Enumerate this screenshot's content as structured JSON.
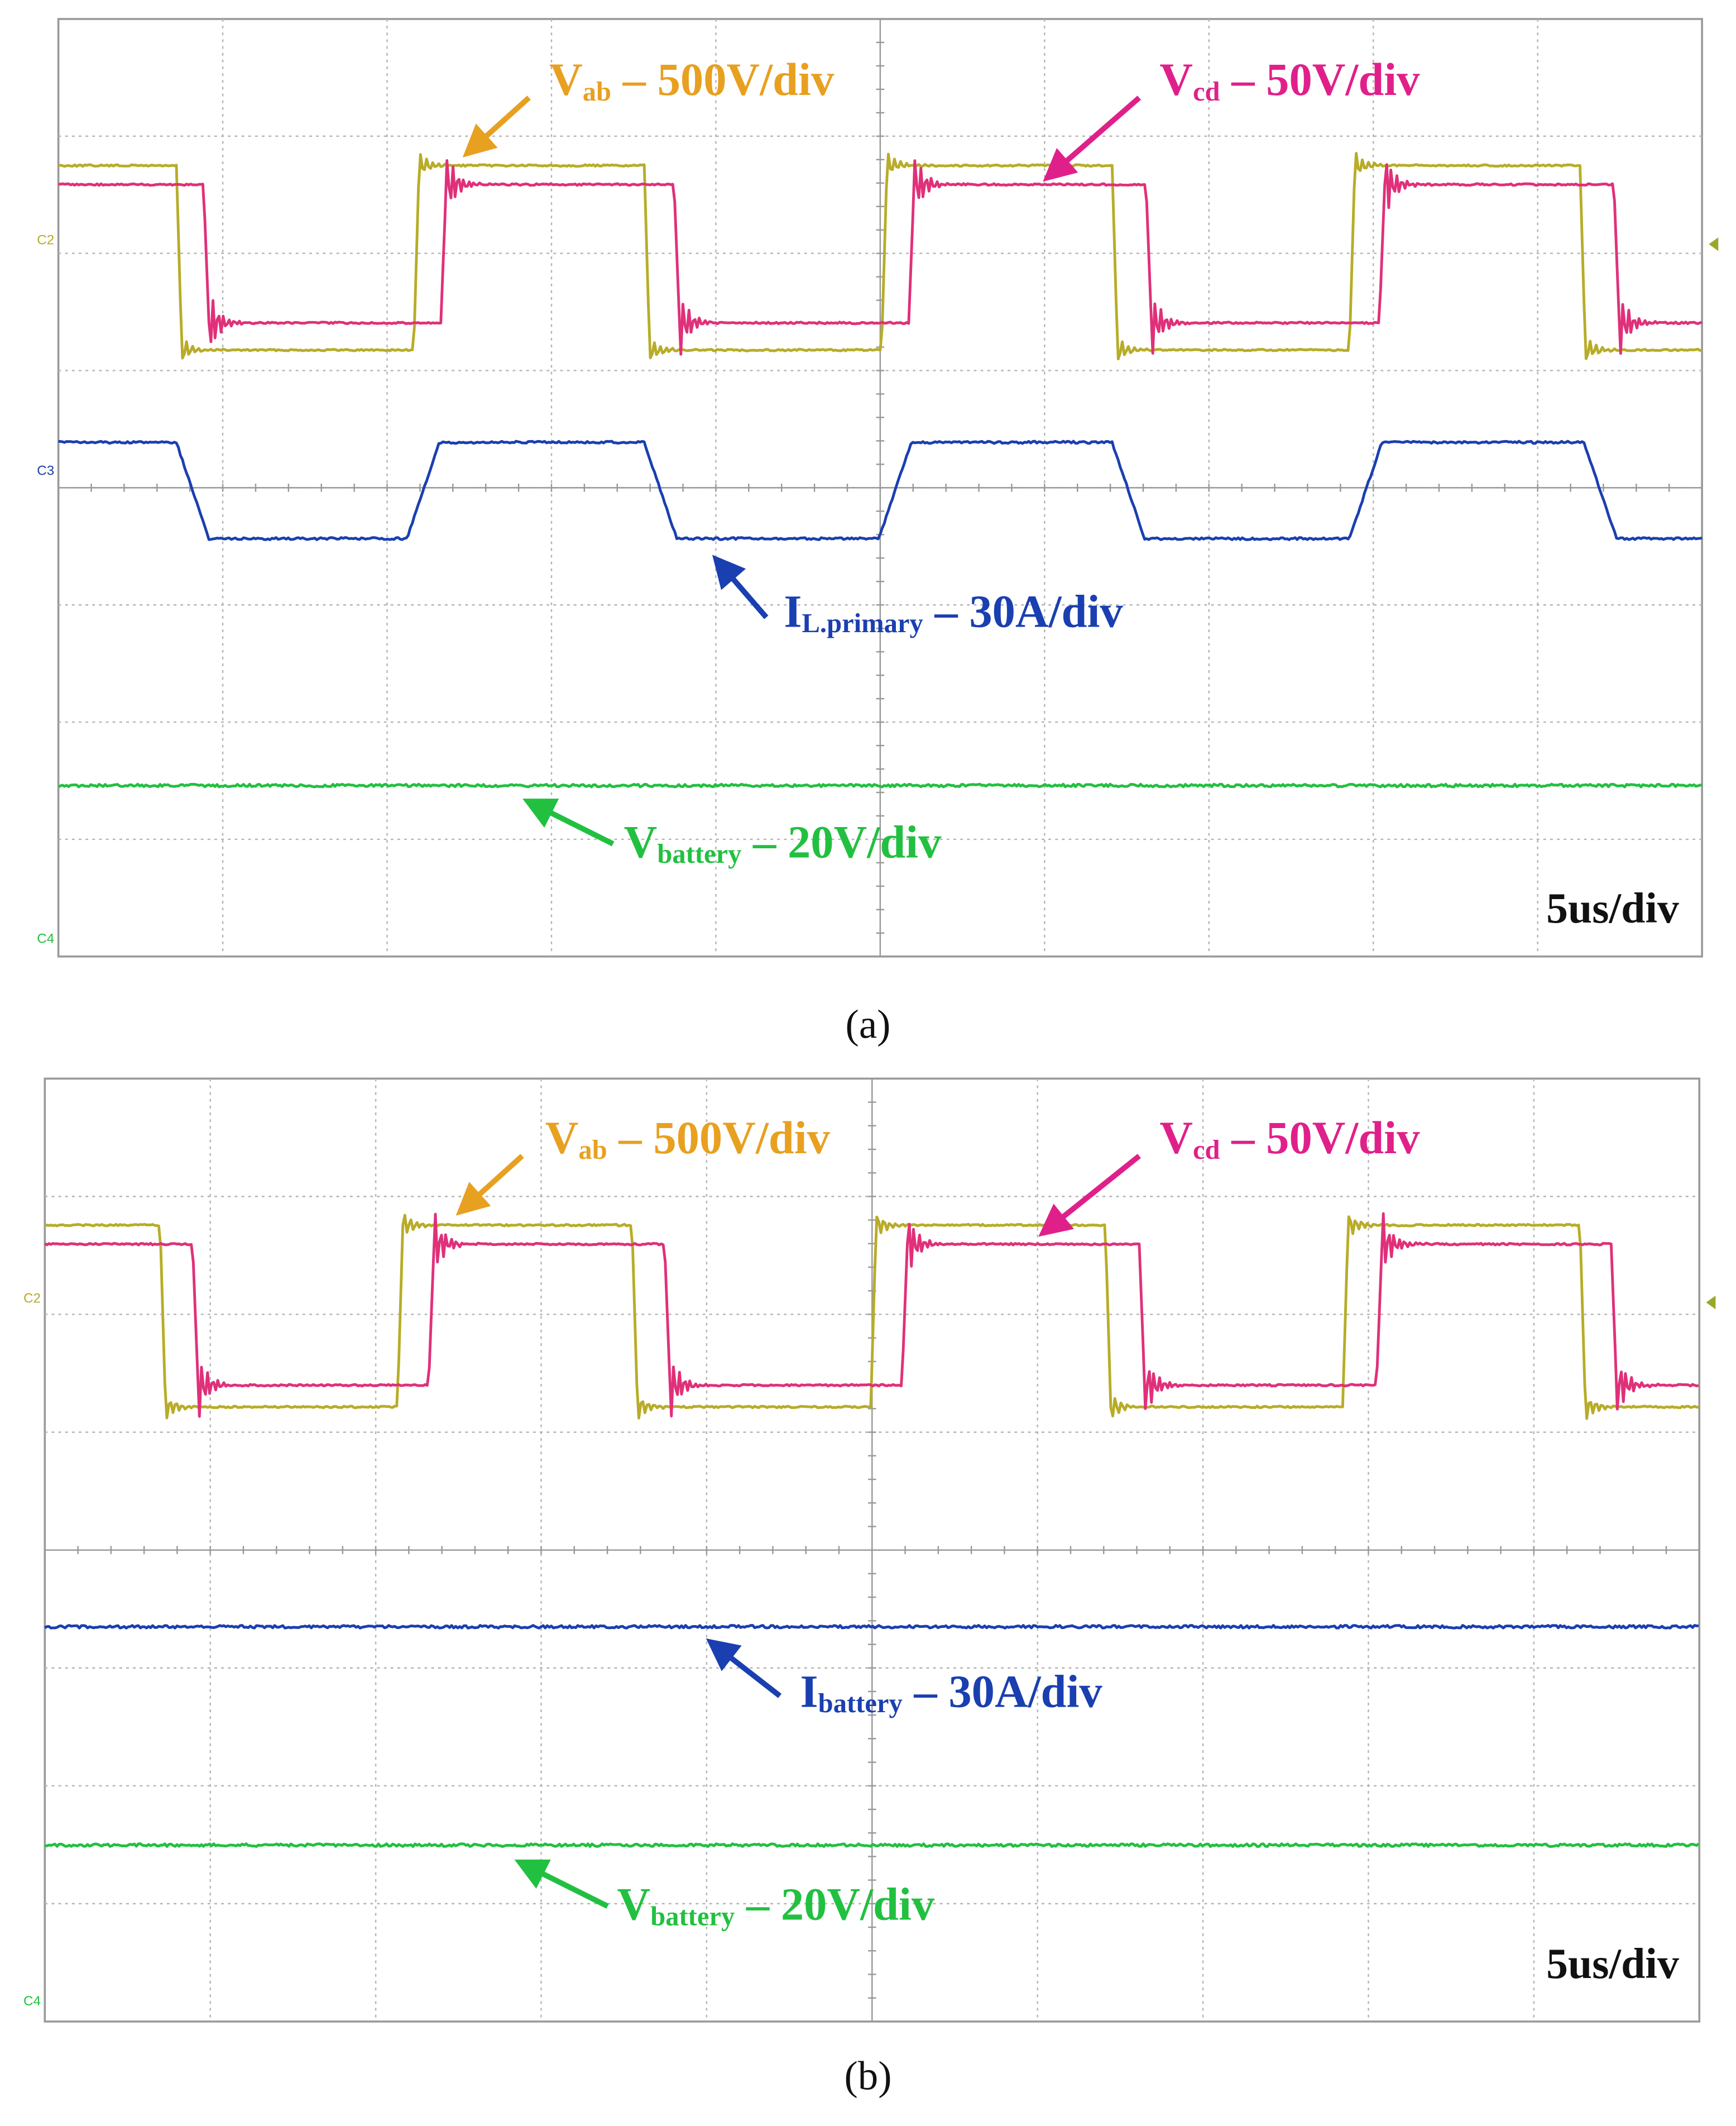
{
  "panels": [
    {
      "caption": "(a)",
      "timebase": "5us/div",
      "channels": [
        "C2",
        "C3",
        "C4"
      ],
      "traces": [
        {
          "symbol": "V",
          "subscript": "ab",
          "scale": " – 500V/div"
        },
        {
          "symbol": "V",
          "subscript": "cd",
          "scale": " – 50V/div"
        },
        {
          "symbol": "I",
          "subscript": "L.primary",
          "scale": " – 30A/div"
        },
        {
          "symbol": "V",
          "subscript": "battery",
          "scale": " –  20V/div"
        }
      ]
    },
    {
      "caption": "(b)",
      "timebase": "5us/div",
      "channels": [
        "C2",
        "C4"
      ],
      "traces": [
        {
          "symbol": "V",
          "subscript": "ab",
          "scale": " – 500V/div"
        },
        {
          "symbol": "V",
          "subscript": "cd",
          "scale": " – 50V/div"
        },
        {
          "symbol": "I",
          "subscript": "battery",
          "scale": " – 30A/div"
        },
        {
          "symbol": "V",
          "subscript": "battery",
          "scale": " –  20V/div"
        }
      ]
    }
  ]
}
